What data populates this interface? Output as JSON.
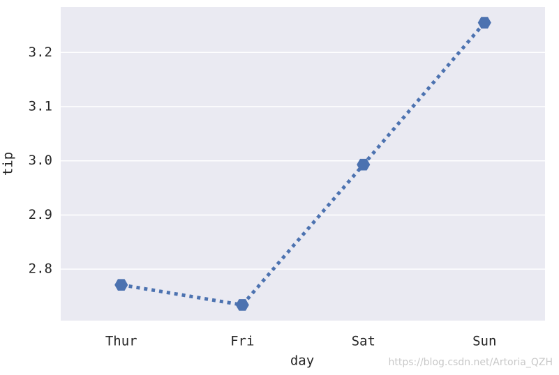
{
  "chart_data": {
    "type": "line",
    "xlabel": "day",
    "ylabel": "tip",
    "categories": [
      "Thur",
      "Fri",
      "Sat",
      "Sun"
    ],
    "values": [
      2.771,
      2.734,
      2.993,
      3.255
    ],
    "color": "#4c72b0",
    "linestyle": "dotted",
    "marker": "hexagon",
    "ylim": [
      2.705,
      3.284
    ],
    "yticks": [
      2.8,
      2.9,
      {
        "value": 3,
        "label": "3.0"
      },
      3.1,
      3.2
    ],
    "grid": true,
    "watermark": "https://blog.csdn.net/Artoria_QZH"
  }
}
